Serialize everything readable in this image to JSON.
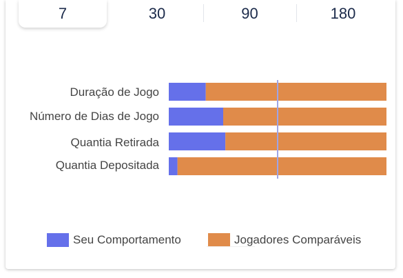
{
  "period_tabs": {
    "items": [
      "7",
      "30",
      "90",
      "180"
    ],
    "selected": "7"
  },
  "colors": {
    "series_user": "#6570ea",
    "series_compare": "#e08b4a",
    "reference_line": "#9ea4e6"
  },
  "chart_data": {
    "type": "bar",
    "orientation": "horizontal",
    "stacked": true,
    "normalized": true,
    "categories": [
      "Duração de Jogo",
      "Número de Dias de Jogo",
      "Quantia Retirada",
      "Quantia Depositada"
    ],
    "series": [
      {
        "name": "Seu Comportamento",
        "values": [
          17,
          25,
          26,
          4
        ]
      },
      {
        "name": "Jogadores Comparáveis",
        "values": [
          83,
          75,
          74,
          96
        ]
      }
    ],
    "reference_line": 50,
    "xlim": [
      0,
      100
    ],
    "legend": [
      "Seu Comportamento",
      "Jogadores Comparáveis"
    ],
    "legend_position": "bottom",
    "grid": false
  }
}
